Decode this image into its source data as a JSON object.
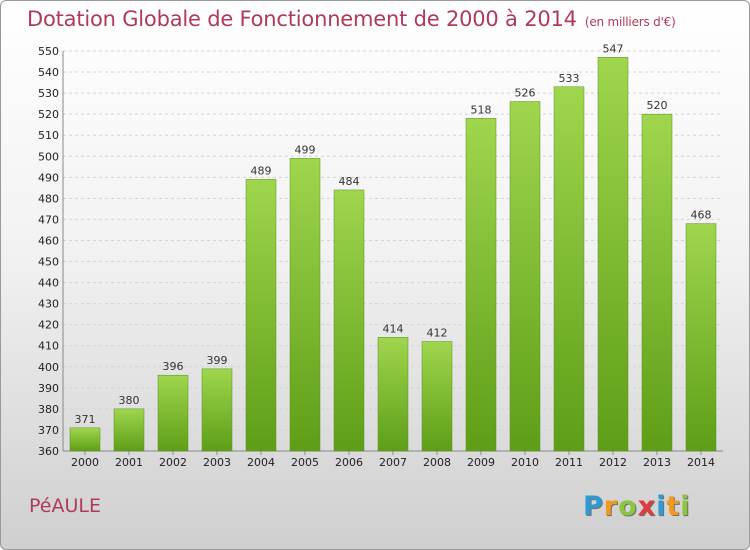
{
  "chart_data": {
    "type": "bar",
    "title": "Dotation Globale de Fonctionnement de 2000 à 2014",
    "unit": "(en milliers d'€)",
    "categories": [
      "2000",
      "2001",
      "2002",
      "2003",
      "2004",
      "2005",
      "2006",
      "2007",
      "2008",
      "2009",
      "2010",
      "2011",
      "2012",
      "2013",
      "2014"
    ],
    "values": [
      371,
      380,
      396,
      399,
      489,
      499,
      484,
      414,
      412,
      518,
      526,
      533,
      547,
      520,
      468
    ],
    "ylim": [
      360,
      550
    ],
    "yticks": [
      360,
      370,
      380,
      390,
      400,
      410,
      420,
      430,
      440,
      450,
      460,
      470,
      480,
      490,
      500,
      510,
      520,
      530,
      540,
      550
    ],
    "grid": true,
    "bar_color": "#7cc22e"
  },
  "commune": "PéAULE",
  "logo": {
    "letters": [
      "P",
      "r",
      "o",
      "x",
      "i",
      "t",
      "i"
    ],
    "colors": [
      "#2f9bd6",
      "#f39a1e",
      "#8cc63f",
      "#e03a3e",
      "#2f9bd6",
      "#f39a1e",
      "#8cc63f"
    ]
  }
}
